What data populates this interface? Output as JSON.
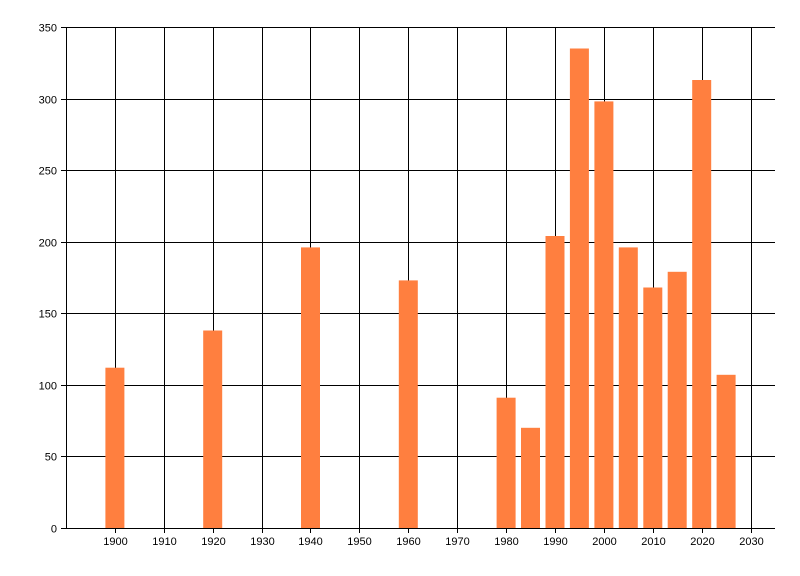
{
  "chart_data": {
    "type": "bar",
    "title": "",
    "xlabel": "",
    "ylabel": "",
    "x": [
      1900,
      1920,
      1940,
      1960,
      1980,
      1985,
      1990,
      1995,
      2000,
      2005,
      2010,
      2015,
      2020,
      2025
    ],
    "values": [
      112,
      138,
      196,
      173,
      91,
      70,
      204,
      335,
      298,
      196,
      168,
      179,
      313,
      107
    ],
    "xlim": [
      1890,
      2035
    ],
    "ylim": [
      0,
      350
    ],
    "x_ticks": [
      1900,
      1910,
      1920,
      1930,
      1940,
      1950,
      1960,
      1970,
      1980,
      1990,
      2000,
      2010,
      2020,
      2030
    ],
    "y_ticks": [
      0,
      50,
      100,
      150,
      200,
      250,
      300,
      350
    ],
    "grid": true,
    "legend": "none",
    "bar_color": "#ff7f3f",
    "grid_color": "#000000"
  }
}
